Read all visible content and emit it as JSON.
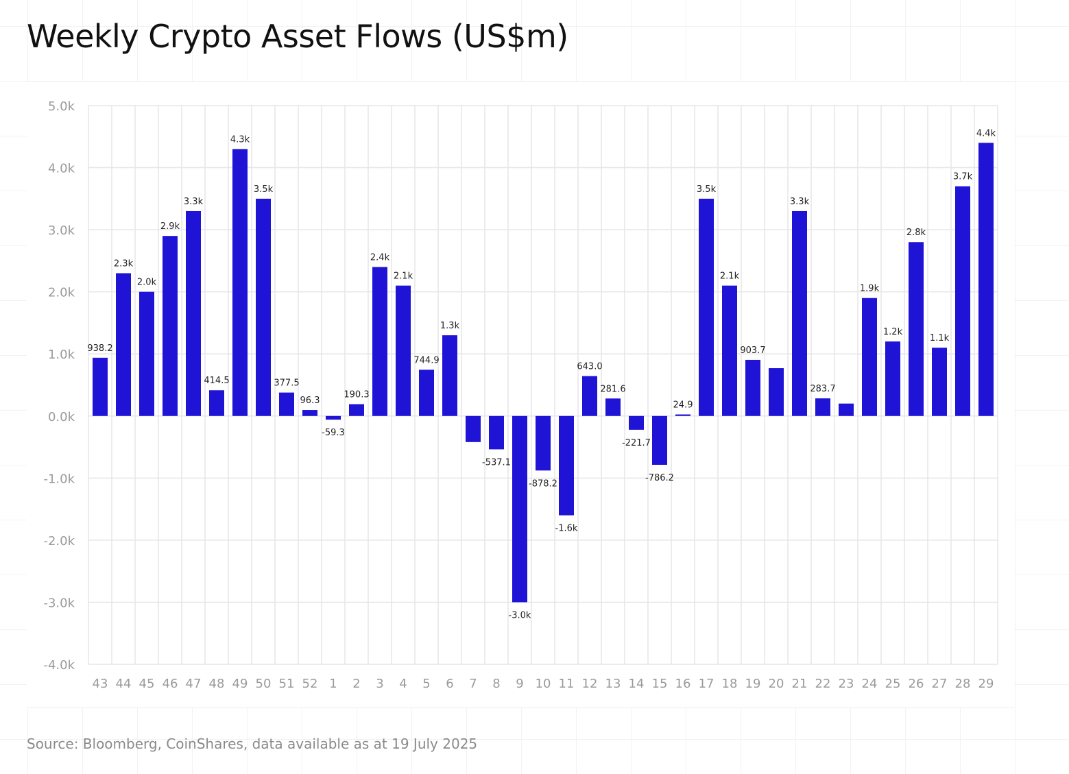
{
  "title": "Weekly Crypto Asset Flows (US$m)",
  "source": "Source: Bloomberg, CoinShares, data available as at 19 July 2025",
  "colors": {
    "bar": "#1f14d6",
    "grid": "#e6e6ea",
    "tick_text": "#9a9a9a",
    "label_text": "#222222"
  },
  "chart_data": {
    "type": "bar",
    "title": "Weekly Crypto Asset Flows (US$m)",
    "xlabel": "",
    "ylabel": "",
    "ylim": [
      -4000,
      5000
    ],
    "y_ticks": [
      {
        "value": 5000,
        "label": "5.0k"
      },
      {
        "value": 4000,
        "label": "4.0k"
      },
      {
        "value": 3000,
        "label": "3.0k"
      },
      {
        "value": 2000,
        "label": "2.0k"
      },
      {
        "value": 1000,
        "label": "1.0k"
      },
      {
        "value": 0,
        "label": "0.0k"
      },
      {
        "value": -1000,
        "label": "-1.0k"
      },
      {
        "value": -2000,
        "label": "-2.0k"
      },
      {
        "value": -3000,
        "label": "-3.0k"
      },
      {
        "value": -4000,
        "label": "-4.0k"
      }
    ],
    "grid": true,
    "categories": [
      "43",
      "44",
      "45",
      "46",
      "47",
      "48",
      "49",
      "50",
      "51",
      "52",
      "1",
      "2",
      "3",
      "4",
      "5",
      "6",
      "7",
      "8",
      "9",
      "10",
      "11",
      "12",
      "13",
      "14",
      "15",
      "16",
      "17",
      "18",
      "19",
      "20",
      "21",
      "22",
      "23",
      "24",
      "25",
      "26",
      "27",
      "28",
      "29"
    ],
    "values": [
      938.2,
      2300,
      2000,
      2900,
      3300,
      414.5,
      4300,
      3500,
      377.5,
      96.3,
      -59.3,
      190.3,
      2400,
      2100,
      744.9,
      1300,
      -420,
      -537.1,
      -3000,
      -878.2,
      -1600,
      643.0,
      281.6,
      -221.7,
      -786.2,
      24.9,
      3500,
      2100,
      903.7,
      770,
      3300,
      283.7,
      200,
      1900,
      1200,
      2800,
      1100,
      3700,
      4400
    ],
    "data_labels": [
      "938.2",
      "2.3k",
      "2.0k",
      "2.9k",
      "3.3k",
      "414.5",
      "4.3k",
      "3.5k",
      "377.5",
      "96.3",
      "-59.3",
      "190.3",
      "2.4k",
      "2.1k",
      "744.9",
      "1.3k",
      "",
      "-537.1",
      "-3.0k",
      "-878.2",
      "-1.6k",
      "643.0",
      "281.6",
      "-221.7",
      "-786.2",
      "24.9",
      "3.5k",
      "2.1k",
      "903.7",
      "",
      "3.3k",
      "283.7",
      "",
      "1.9k",
      "1.2k",
      "2.8k",
      "1.1k",
      "3.7k",
      "4.4k"
    ]
  }
}
